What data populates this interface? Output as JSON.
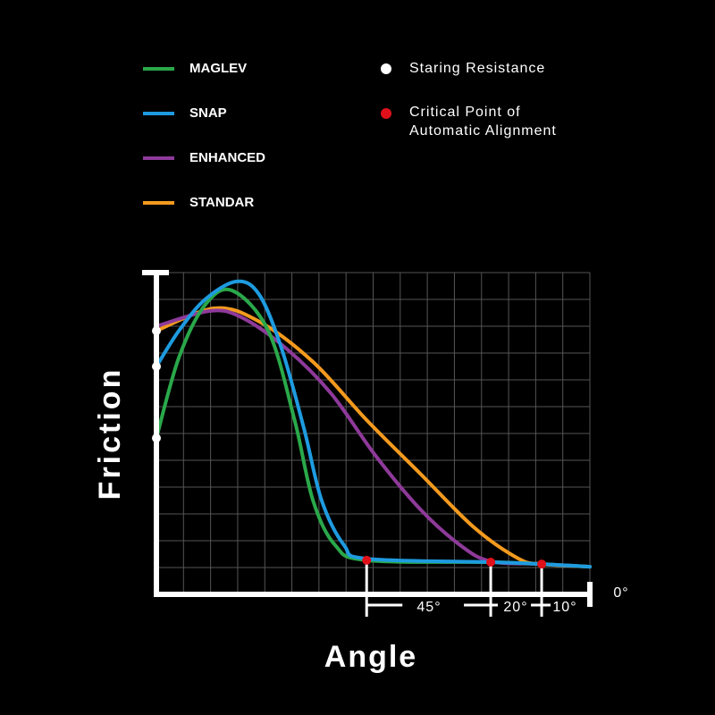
{
  "chart_data": {
    "type": "line",
    "xlabel": "Angle",
    "ylabel": "Friction",
    "xlim": [
      0,
      16
    ],
    "ylim": [
      0,
      12
    ],
    "xticks": [
      0,
      1,
      2,
      3,
      4,
      5,
      6,
      7,
      8,
      9,
      10,
      11,
      12,
      13,
      14,
      15,
      16
    ],
    "yticks": [
      0,
      1,
      2,
      3,
      4,
      5,
      6,
      7,
      8,
      9,
      10,
      11,
      12
    ],
    "grid": true,
    "series": [
      {
        "name": "MAGLEV",
        "color": "#2aa84a",
        "x": [
          0,
          0.83,
          1.8,
          2.8,
          4.13,
          5.1,
          5.78,
          6.6,
          7.76,
          12.34,
          14.22,
          16
        ],
        "values": [
          5.83,
          8.83,
          10.8,
          11.33,
          9.83,
          6.5,
          3.5,
          1.83,
          1.27,
          1.2,
          1.13,
          1.03
        ]
      },
      {
        "name": "SNAP",
        "color": "#1e9be0",
        "x": [
          0,
          0.83,
          1.8,
          2.97,
          3.8,
          4.62,
          5.45,
          6.1,
          6.93,
          7.76,
          12.34,
          14.22,
          16
        ],
        "values": [
          8.5,
          9.83,
          11,
          11.67,
          11.17,
          9.17,
          6.17,
          3.5,
          1.83,
          1.33,
          1.2,
          1.13,
          1.03
        ]
      },
      {
        "name": "ENHANCED",
        "color": "#8e3a9a",
        "x": [
          0,
          1.98,
          3.14,
          4.79,
          6.44,
          8.09,
          9.74,
          11.22,
          12.34,
          14.22,
          16
        ],
        "values": [
          10,
          10.57,
          10.33,
          9.17,
          7.5,
          5.17,
          3.17,
          1.83,
          1.23,
          1.13,
          1.03
        ]
      },
      {
        "name": "STANDAR",
        "color": "#f39a1e",
        "x": [
          0,
          2.15,
          3.8,
          5.78,
          7.76,
          9.74,
          11.72,
          13.37,
          14.22,
          16
        ],
        "values": [
          9.83,
          10.67,
          10.17,
          8.67,
          6.5,
          4.5,
          2.5,
          1.33,
          1.13,
          1.03
        ]
      }
    ],
    "markers": [
      {
        "name": "Staring Resistance",
        "color": "#ffffff",
        "x": [
          0,
          0,
          0
        ],
        "values": [
          9.83,
          8.5,
          5.83
        ]
      },
      {
        "name": [
          "Critical Point of",
          "Automatic Alignment"
        ],
        "color": "#e0101a",
        "x": [
          7.76,
          12.34,
          14.22
        ],
        "values": [
          1.27,
          1.2,
          1.13
        ]
      }
    ],
    "annotations": [
      "45°",
      "20°",
      "10°",
      "0°"
    ]
  }
}
